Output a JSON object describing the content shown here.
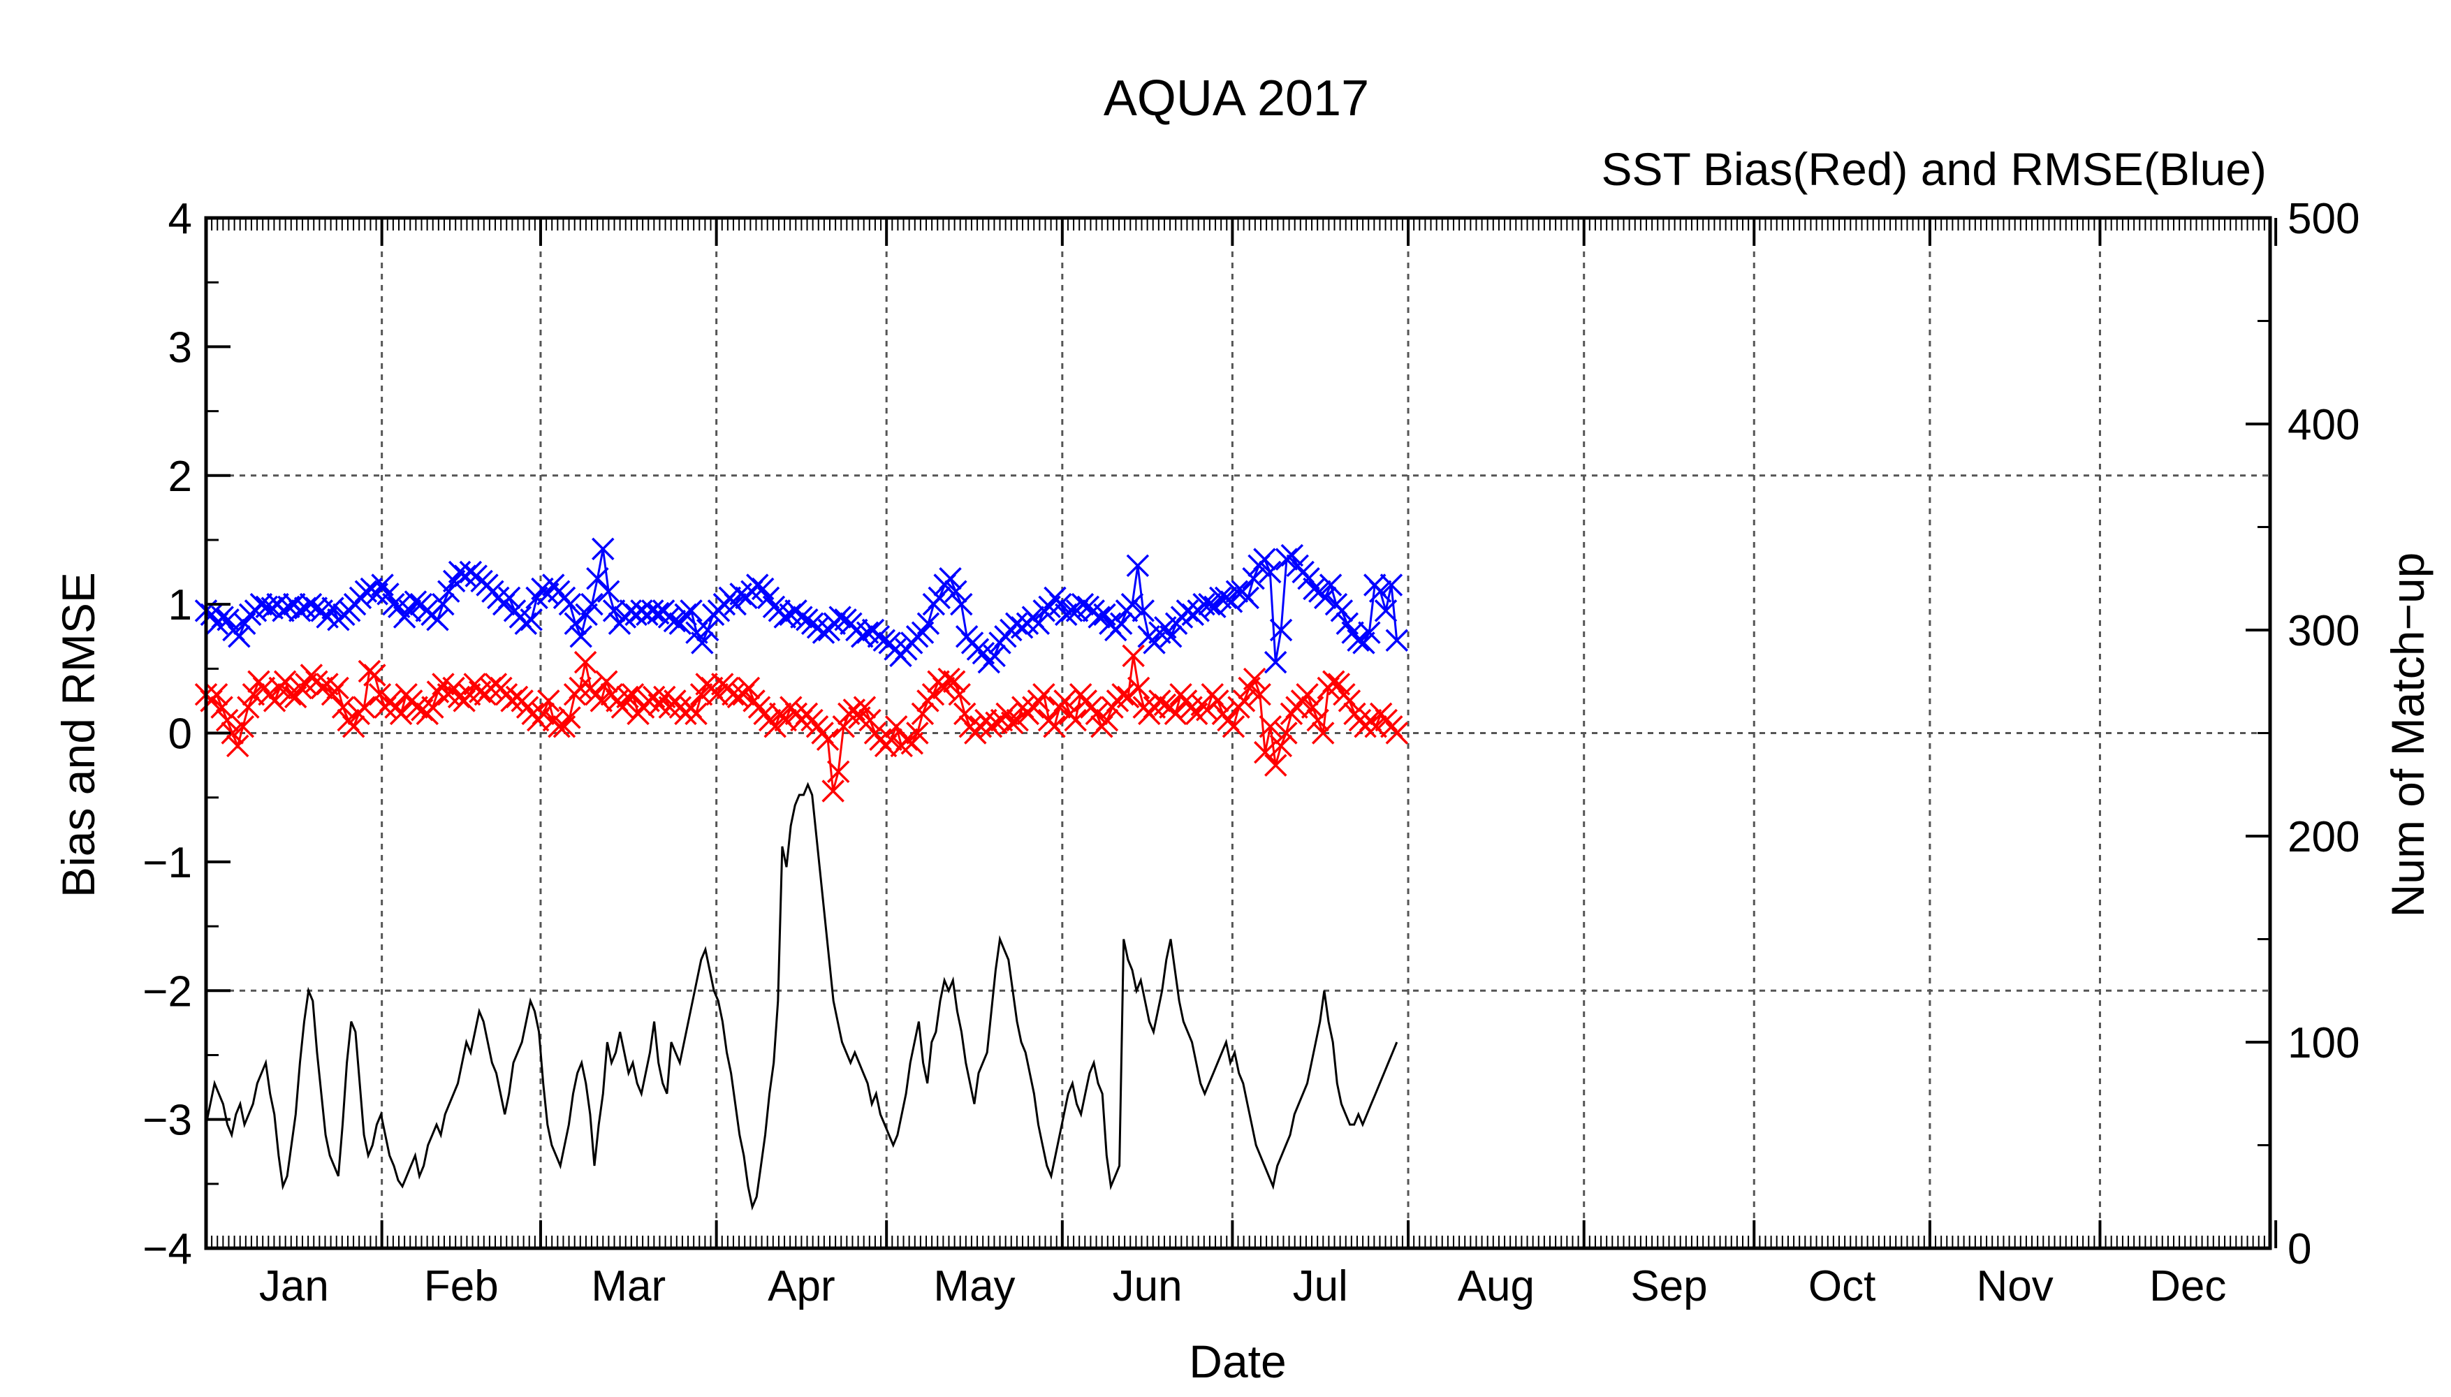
{
  "chart_data": {
    "type": "line",
    "title": "AQUA 2017",
    "subtitle": "SST Bias(Red) and RMSE(Blue)",
    "xlabel": "Date",
    "ylabel": "Bias and RMSE",
    "y2label": "Num of Match−up",
    "x_unit": "day of year 2017",
    "xlim": [
      1,
      365
    ],
    "ylim": [
      -4,
      4
    ],
    "y2lim": [
      0,
      500
    ],
    "grid": true,
    "month_ticks": [
      1,
      32,
      60,
      91,
      121,
      152,
      182,
      213,
      244,
      274,
      305,
      335,
      366
    ],
    "month_labels": [
      "Jan",
      "Feb",
      "Mar",
      "Apr",
      "May",
      "Jun",
      "Jul",
      "Aug",
      "Sep",
      "Oct",
      "Nov",
      "Dec"
    ],
    "yticks": [
      "−4",
      "−3",
      "−2",
      "−1",
      "0",
      "1",
      "2",
      "3",
      "4"
    ],
    "y2ticks": [
      "0",
      "100",
      "200",
      "300",
      "400",
      "500"
    ],
    "colors": {
      "bias": "#ff0000",
      "rmse": "#0000ff",
      "matchup": "#000000"
    },
    "series": [
      {
        "values": [
          0.95,
          0.92,
          0.85,
          0.9,
          0.88,
          0.8,
          0.75,
          0.85,
          0.92,
          0.95,
          1.0,
          0.98,
          0.97,
          1.0,
          0.95,
          0.98,
          1.0,
          0.95,
          0.97,
          1.0,
          0.97,
          0.95,
          0.9,
          0.97,
          0.88,
          0.92,
          0.95,
          1.0,
          1.05,
          1.1,
          1.12,
          1.08,
          1.15,
          1.08,
          1.0,
          0.98,
          0.9,
          0.95,
          1.02,
          1.0,
          0.95,
          0.92,
          0.88,
          1.0,
          1.1,
          1.18,
          1.25,
          1.22,
          1.25,
          1.22,
          1.18,
          1.15,
          1.1,
          1.05,
          1.0,
          1.05,
          0.95,
          0.9,
          0.85,
          0.88,
          1.05,
          1.12,
          1.08,
          1.15,
          1.1,
          1.05,
          1.0,
          0.85,
          0.75,
          0.92,
          1.0,
          1.2,
          1.43,
          1.1,
          0.95,
          0.85,
          0.9,
          0.95,
          0.92,
          0.95,
          0.92,
          0.95,
          0.93,
          0.95,
          0.9,
          0.87,
          0.85,
          0.92,
          0.95,
          0.78,
          0.7,
          0.8,
          0.92,
          0.95,
          1.0,
          1.05,
          1.0,
          1.08,
          1.05,
          1.1,
          1.15,
          1.12,
          1.05,
          0.98,
          0.95,
          0.9,
          0.92,
          0.95,
          0.9,
          0.88,
          0.85,
          0.82,
          0.78,
          0.8,
          0.85,
          0.9,
          0.88,
          0.85,
          0.8,
          0.75,
          0.78,
          0.8,
          0.75,
          0.72,
          0.7,
          0.65,
          0.6,
          0.65,
          0.7,
          0.75,
          0.78,
          0.85,
          1.0,
          1.05,
          1.15,
          1.2,
          1.1,
          1.0,
          0.75,
          0.7,
          0.65,
          0.62,
          0.55,
          0.6,
          0.7,
          0.75,
          0.8,
          0.85,
          0.82,
          0.85,
          0.9,
          0.85,
          0.95,
          0.98,
          1.05,
          1.0,
          0.92,
          0.95,
          0.95,
          1.0,
          0.98,
          0.95,
          0.9,
          0.92,
          0.85,
          0.8,
          0.85,
          0.95,
          1.0,
          1.3,
          0.95,
          0.75,
          0.7,
          0.78,
          0.82,
          0.75,
          0.85,
          0.9,
          0.95,
          0.92,
          0.95,
          1.0,
          1.0,
          0.98,
          1.05,
          1.05,
          1.02,
          1.1,
          1.1,
          1.05,
          1.2,
          1.3,
          1.35,
          1.25,
          0.55,
          0.8,
          1.35,
          1.38,
          1.3,
          1.25,
          1.2,
          1.12,
          1.1,
          1.05,
          1.15,
          1.0,
          0.95,
          0.85,
          0.78,
          0.72,
          0.7,
          0.78,
          1.15,
          1.1,
          0.95,
          1.15,
          0.72
        ]
      },
      {
        "values": [
          0.3,
          0.25,
          0.3,
          0.2,
          0.1,
          0.0,
          -0.1,
          0.05,
          0.2,
          0.3,
          0.4,
          0.35,
          0.3,
          0.25,
          0.35,
          0.4,
          0.3,
          0.28,
          0.35,
          0.38,
          0.45,
          0.4,
          0.35,
          0.38,
          0.3,
          0.35,
          0.2,
          0.1,
          0.05,
          0.15,
          0.2,
          0.48,
          0.45,
          0.3,
          0.2,
          0.25,
          0.2,
          0.15,
          0.3,
          0.25,
          0.2,
          0.18,
          0.15,
          0.2,
          0.32,
          0.38,
          0.3,
          0.35,
          0.28,
          0.25,
          0.3,
          0.38,
          0.32,
          0.3,
          0.35,
          0.38,
          0.35,
          0.3,
          0.25,
          0.28,
          0.25,
          0.2,
          0.15,
          0.1,
          0.15,
          0.25,
          0.1,
          0.05,
          0.05,
          0.12,
          0.3,
          0.35,
          0.55,
          0.35,
          0.3,
          0.25,
          0.4,
          0.3,
          0.25,
          0.2,
          0.28,
          0.3,
          0.15,
          0.2,
          0.25,
          0.28,
          0.22,
          0.28,
          0.2,
          0.25,
          0.2,
          0.15,
          0.2,
          0.15,
          0.3,
          0.38,
          0.35,
          0.3,
          0.38,
          0.35,
          0.3,
          0.28,
          0.3,
          0.35,
          0.25,
          0.2,
          0.15,
          0.1,
          0.05,
          0.15,
          0.1,
          0.2,
          0.15,
          0.1,
          0.15,
          0.1,
          0.05,
          0.0,
          -0.05,
          -0.45,
          -0.3,
          0.05,
          0.15,
          0.18,
          0.12,
          0.2,
          0.1,
          0.0,
          -0.05,
          -0.1,
          -0.05,
          0.05,
          -0.1,
          -0.05,
          -0.08,
          0.0,
          0.15,
          0.25,
          0.3,
          0.4,
          0.35,
          0.42,
          0.4,
          0.3,
          0.15,
          0.05,
          0.0,
          0.05,
          0.1,
          0.05,
          0.08,
          0.1,
          0.15,
          0.08,
          0.1,
          0.2,
          0.15,
          0.2,
          0.25,
          0.3,
          0.1,
          0.05,
          0.2,
          0.25,
          0.15,
          0.1,
          0.3,
          0.25,
          0.2,
          0.15,
          0.05,
          0.1,
          0.2,
          0.25,
          0.3,
          0.28,
          0.6,
          0.35,
          0.2,
          0.15,
          0.2,
          0.25,
          0.22,
          0.2,
          0.15,
          0.3,
          0.25,
          0.2,
          0.15,
          0.22,
          0.18,
          0.3,
          0.25,
          0.15,
          0.1,
          0.05,
          0.2,
          0.25,
          0.35,
          0.42,
          0.3,
          -0.15,
          0.05,
          -0.25,
          -0.1,
          0.0,
          0.15,
          0.2,
          0.25,
          0.3,
          0.2,
          0.1,
          0.0,
          0.35,
          0.4,
          0.38,
          0.3,
          0.25,
          0.15,
          0.1,
          0.05,
          0.1,
          0.05,
          0.15,
          0.1,
          0.05,
          0.0
        ]
      },
      {
        "values": [
          60,
          70,
          80,
          75,
          70,
          60,
          55,
          65,
          70,
          60,
          65,
          70,
          80,
          85,
          90,
          75,
          65,
          45,
          30,
          35,
          50,
          65,
          90,
          110,
          125,
          120,
          95,
          75,
          55,
          45,
          40,
          35,
          60,
          90,
          110,
          105,
          80,
          55,
          45,
          50,
          60,
          65,
          55,
          45,
          40,
          33,
          30,
          35,
          40,
          45,
          35,
          40,
          50,
          55,
          60,
          55,
          65,
          70,
          75,
          80,
          90,
          100,
          95,
          105,
          115,
          110,
          100,
          90,
          85,
          75,
          65,
          75,
          90,
          95,
          100,
          110,
          120,
          115,
          105,
          80,
          60,
          50,
          45,
          40,
          50,
          60,
          75,
          85,
          90,
          80,
          65,
          40,
          60,
          75,
          100,
          90,
          95,
          105,
          95,
          85,
          90,
          80,
          75,
          85,
          95,
          110,
          90,
          80,
          75,
          100,
          95,
          90,
          100,
          110,
          120,
          130,
          140,
          145,
          135,
          125,
          120,
          110,
          95,
          85,
          70,
          55,
          45,
          30,
          20,
          25,
          40,
          55,
          75,
          90,
          120,
          195,
          185,
          205,
          215,
          220,
          220,
          225,
          220,
          200,
          180,
          160,
          140,
          120,
          110,
          100,
          95,
          90,
          95,
          90,
          85,
          80,
          70,
          75,
          65,
          60,
          55,
          50,
          55,
          65,
          75,
          90,
          100,
          110,
          90,
          80,
          100,
          105,
          120,
          130,
          125,
          130,
          115,
          105,
          90,
          80,
          70,
          85,
          90,
          95,
          115,
          135,
          150,
          145,
          140,
          125,
          110,
          100,
          95,
          85,
          75,
          60,
          50,
          40,
          35,
          45,
          55,
          65,
          75,
          80,
          70,
          65,
          75,
          85,
          90,
          80,
          75,
          45,
          30,
          35,
          40,
          150,
          140,
          135,
          125,
          130,
          120,
          110,
          105,
          115,
          125,
          140,
          150,
          135,
          120,
          110,
          105,
          100,
          90,
          80,
          75,
          80,
          85,
          90,
          95,
          100,
          90,
          95,
          85,
          80,
          70,
          60,
          50,
          45,
          40,
          35,
          30,
          40,
          45,
          50,
          55,
          65,
          70,
          75,
          80,
          90,
          100,
          110,
          125,
          110,
          100,
          80,
          70,
          65,
          60,
          60,
          65,
          60,
          65,
          70,
          75,
          80,
          85,
          90,
          95,
          100
        ]
      }
    ]
  }
}
